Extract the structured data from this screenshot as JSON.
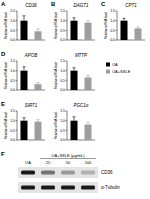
{
  "chart_data": [
    {
      "type": "bar",
      "panel": "A",
      "title": "CD36",
      "y_label": "Relative mRNA level",
      "categories": [
        null
      ],
      "tick_labels": "y",
      "series": [
        {
          "name": "OA",
          "color": "#000000",
          "values": [
            1.0
          ],
          "errors": [
            0.25
          ]
        },
        {
          "name": "OA+SSLE",
          "color": "#9e9e9e",
          "values": [
            0.45
          ],
          "errors": [
            0.12
          ]
        }
      ],
      "ylim": [
        0,
        1.5
      ],
      "yticks": [
        {
          "value": 0,
          "label": "0.0"
        },
        0.5,
        {
          "value": 1,
          "label": "1.0"
        },
        1.5
      ]
    },
    {
      "type": "bar",
      "panel": "B",
      "title": "DAGT1",
      "y_label": "Relative mRNA level",
      "categories": [
        null
      ],
      "tick_labels": "y",
      "series": [
        {
          "name": "OA",
          "color": "#000000",
          "values": [
            1.0
          ],
          "errors": [
            0.15
          ]
        },
        {
          "name": "OA+SSLE",
          "color": "#9e9e9e",
          "values": [
            0.9
          ],
          "errors": [
            0.1
          ]
        }
      ],
      "ylim": [
        0,
        1.5
      ],
      "yticks": [
        {
          "value": 0,
          "label": "0.0"
        },
        0.5,
        {
          "value": 1,
          "label": "1.0"
        },
        1.5
      ]
    },
    {
      "type": "bar",
      "panel": "C",
      "title": "CPT1",
      "y_label": "Relative mRNA level",
      "categories": [
        null
      ],
      "tick_labels": "y",
      "series": [
        {
          "name": "OA",
          "color": "#000000",
          "values": [
            1.0
          ],
          "errors": [
            0.12
          ]
        },
        {
          "name": "OA+SSLE",
          "color": "#9e9e9e",
          "values": [
            0.6
          ],
          "errors": [
            0.08
          ]
        }
      ],
      "ylim": [
        0,
        1.5
      ],
      "yticks": [
        {
          "value": 0,
          "label": "0.0"
        },
        0.5,
        {
          "value": 1,
          "label": "1.0"
        },
        1.5
      ]
    },
    {
      "type": "bar",
      "panel": "D",
      "title": "APOB",
      "y_label": "Relative mRNA level",
      "categories": [
        null
      ],
      "tick_labels": "y",
      "legend": "right",
      "series": [
        {
          "name": "OA",
          "color": "#000000",
          "values": [
            1.0
          ],
          "errors": [
            0.2
          ]
        },
        {
          "name": "OA+SSLE",
          "color": "#9e9e9e",
          "values": [
            0.3
          ],
          "errors": [
            0.08
          ]
        }
      ],
      "ylim": [
        0,
        1.5
      ],
      "yticks": [
        {
          "value": 0,
          "label": "0.0"
        },
        0.5,
        {
          "value": 1,
          "label": "1.0"
        },
        1.5
      ]
    },
    {
      "type": "bar",
      "title": "MTTP",
      "y_label": "Relative mRNA level",
      "categories": [
        null
      ],
      "tick_labels": "y",
      "series": [
        {
          "name": "OA",
          "color": "#000000",
          "values": [
            1.0
          ],
          "errors": [
            0.15
          ]
        },
        {
          "name": "OA+SSLE",
          "color": "#9e9e9e",
          "values": [
            0.65
          ],
          "errors": [
            0.1
          ]
        }
      ],
      "ylim": [
        0,
        1.5
      ],
      "yticks": [
        {
          "value": 0,
          "label": "0.0"
        },
        0.5,
        {
          "value": 1,
          "label": "1.0"
        },
        1.5
      ]
    },
    {
      "type": "bar",
      "panel": "E",
      "title": "SIRT1",
      "y_label": "Relative mRNA level",
      "categories": [
        null
      ],
      "tick_labels": "y",
      "series": [
        {
          "name": "OA",
          "color": "#000000",
          "values": [
            1.0
          ],
          "errors": [
            0.15
          ]
        },
        {
          "name": "OA+SSLE",
          "color": "#9e9e9e",
          "values": [
            0.95
          ],
          "errors": [
            0.1
          ]
        }
      ],
      "ylim": [
        0,
        1.5
      ],
      "yticks": [
        {
          "value": 0,
          "label": "0.0"
        },
        0.5,
        {
          "value": 1,
          "label": "1.0"
        },
        1.5
      ]
    },
    {
      "type": "bar",
      "title": "PGC1α",
      "y_label": "Relative mRNA level",
      "categories": [
        null
      ],
      "tick_labels": "y",
      "series": [
        {
          "name": "OA",
          "color": "#000000",
          "values": [
            1.0
          ],
          "errors": [
            0.2
          ]
        },
        {
          "name": "OA+SSLE",
          "color": "#9e9e9e",
          "values": [
            0.8
          ],
          "errors": [
            0.12
          ]
        }
      ],
      "ylim": [
        0,
        1.5
      ],
      "yticks": [
        {
          "value": 0,
          "label": "0.0"
        },
        0.5,
        {
          "value": 1,
          "label": "1.0"
        },
        1.5
      ]
    }
  ],
  "blot": {
    "panel": "F",
    "treatment_label": "OA+SSLE (μg/mL)",
    "lanes": [
      "OA",
      "25",
      "50",
      "100"
    ],
    "rows": [
      {
        "label": "CD36",
        "bands": [
          1,
          0.55,
          0.35,
          0.25
        ]
      },
      {
        "label": "α-Tubulin",
        "bands": [
          1,
          1,
          1,
          1
        ]
      }
    ]
  }
}
